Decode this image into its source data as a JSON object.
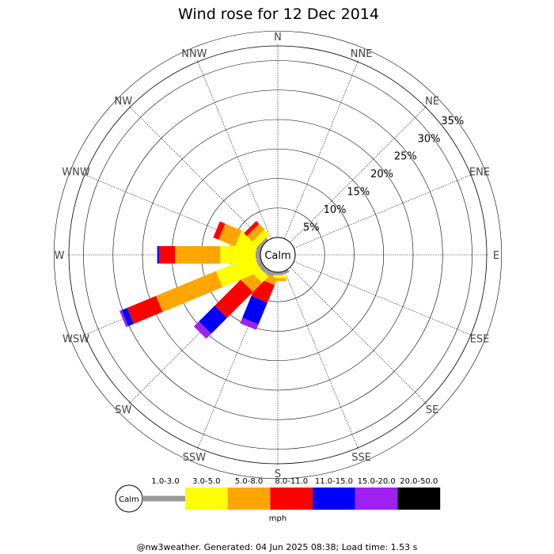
{
  "chart_data": {
    "type": "wind-rose",
    "title": "Wind rose for 12 Dec 2014",
    "directions": [
      "N",
      "NNE",
      "NE",
      "ENE",
      "E",
      "ESE",
      "SE",
      "SSE",
      "S",
      "SSW",
      "SW",
      "WSW",
      "W",
      "WNW",
      "NW",
      "NNW"
    ],
    "ring_labels": [
      "5%",
      "10%",
      "15%",
      "20%",
      "25%",
      "30%",
      "35%"
    ],
    "ring_values": [
      5,
      10,
      15,
      20,
      25,
      30,
      35
    ],
    "calm_label": "Calm",
    "speed_bins": [
      "1.0-3.0",
      "3.0-5.0",
      "5.0-8.0",
      "8.0-11.0",
      "11.0-15.0",
      "15.0-20.0",
      "20.0-50.0"
    ],
    "bin_colors": [
      "#999999",
      "#ffff00",
      "#ffa500",
      "#ff0000",
      "#0000ff",
      "#a020f0",
      "#000000"
    ],
    "unit": "mph",
    "series": [
      {
        "direction": "SSE",
        "values": [
          0.5,
          0,
          0,
          0,
          0,
          0,
          0
        ]
      },
      {
        "direction": "S",
        "values": [
          0.5,
          0.5,
          0.5,
          0,
          0,
          0,
          0
        ]
      },
      {
        "direction": "SSW",
        "values": [
          0.8,
          0,
          1.2,
          3.2,
          4.0,
          1.0,
          0
        ]
      },
      {
        "direction": "SW",
        "values": [
          0.8,
          1.5,
          2.2,
          6.2,
          3.8,
          1.2,
          0
        ]
      },
      {
        "direction": "WSW",
        "values": [
          0.8,
          7.0,
          11.0,
          5.3,
          1.0,
          0.4,
          0
        ]
      },
      {
        "direction": "W",
        "values": [
          0.8,
          6.0,
          7.7,
          2.7,
          0.3,
          0,
          0
        ]
      },
      {
        "direction": "WNW",
        "values": [
          0.8,
          3.5,
          3.0,
          1.0,
          0,
          0,
          0
        ]
      },
      {
        "direction": "NW",
        "values": [
          0.5,
          1.2,
          1.3,
          0.7,
          0,
          0,
          0
        ]
      }
    ],
    "footer": "@nw3weather. Generated: 04 Jun 2025 08:38; Load time: 1.53 s"
  }
}
